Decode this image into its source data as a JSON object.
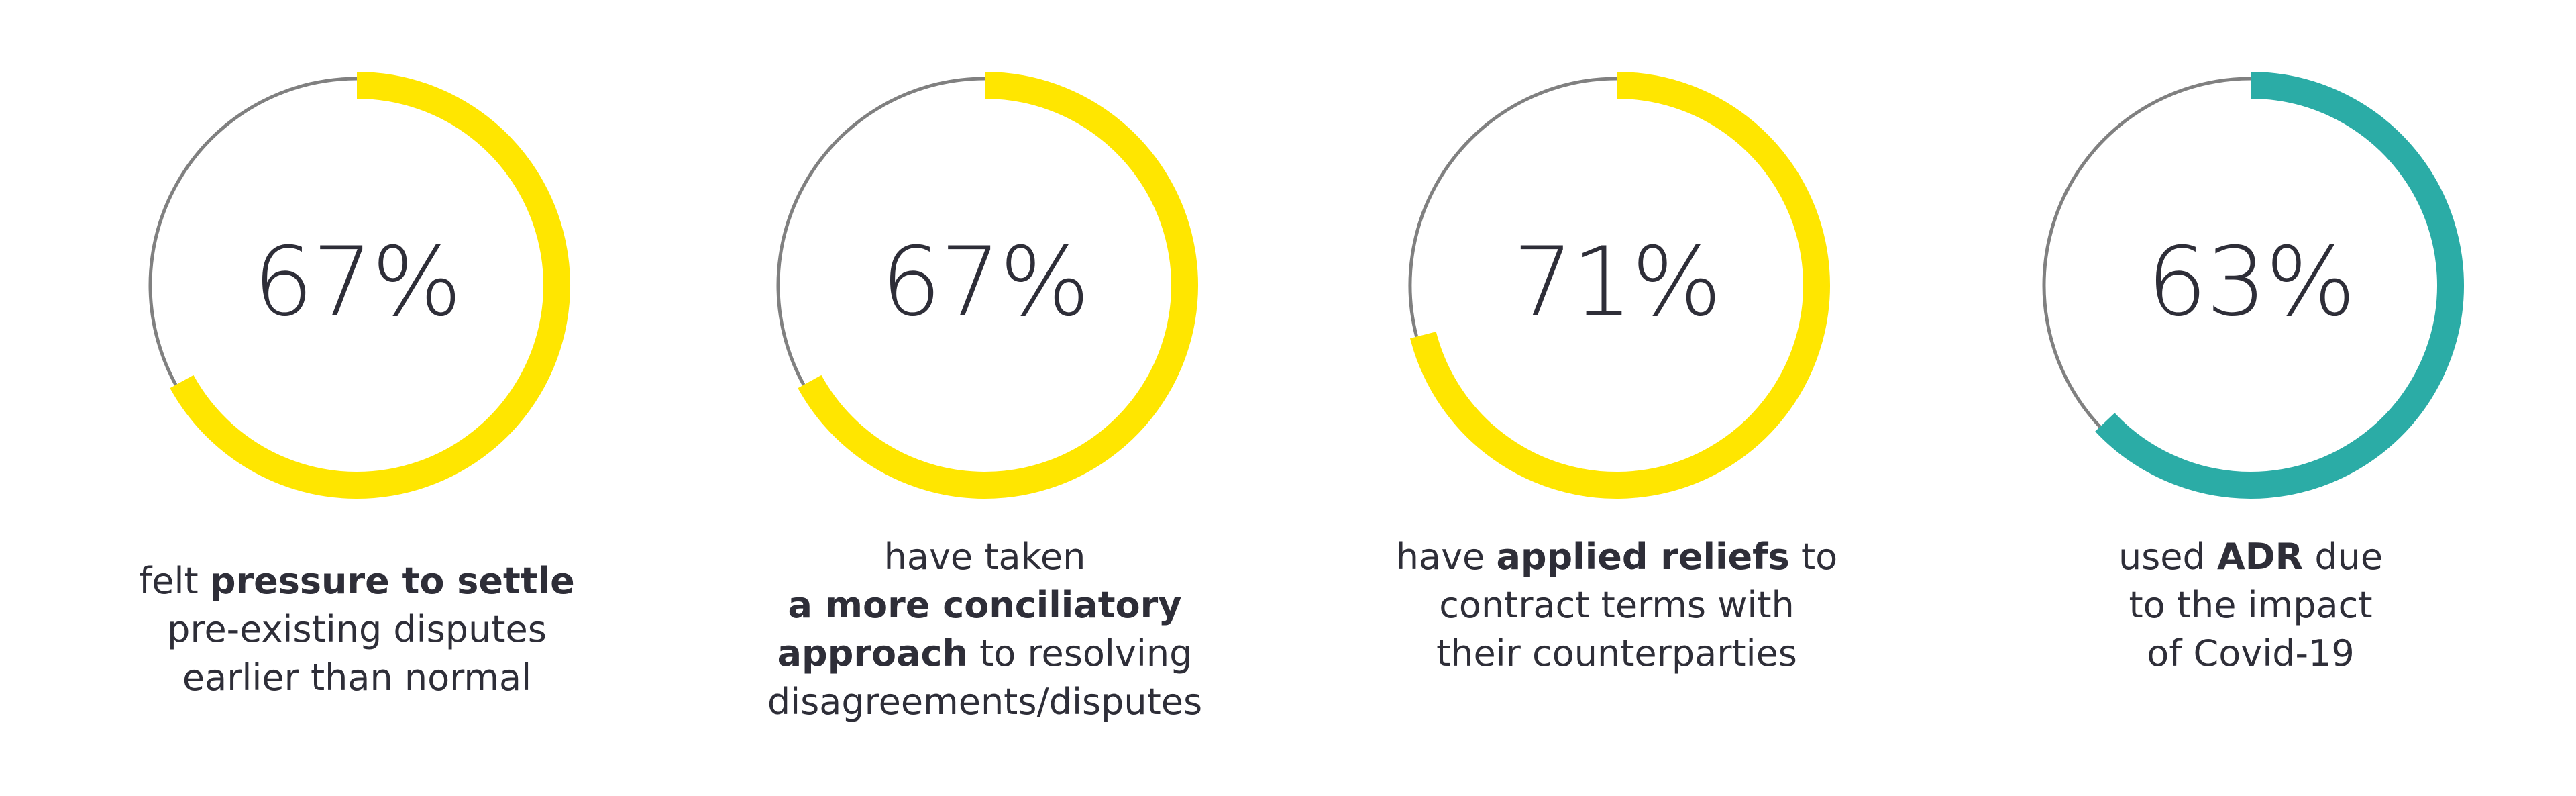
{
  "chart_data": {
    "type": "donut",
    "track_color": "#808080",
    "items": [
      {
        "value": 67,
        "label": "67%",
        "color": "#FFE600",
        "caption": [
          [
            {
              "text": "felt "
            },
            {
              "text": "pressure to settle",
              "bold": true
            }
          ],
          [
            {
              "text": "pre-existing disputes"
            }
          ],
          [
            {
              "text": "earlier than normal"
            }
          ]
        ]
      },
      {
        "value": 67,
        "label": "67%",
        "color": "#FFE600",
        "caption": [
          [
            {
              "text": "have taken"
            }
          ],
          [
            {
              "text": "a more conciliatory",
              "bold": true
            }
          ],
          [
            {
              "text": "approach",
              "bold": true
            },
            {
              "text": " to resolving"
            }
          ],
          [
            {
              "text": "disagreements/disputes"
            }
          ]
        ]
      },
      {
        "value": 71,
        "label": "71%",
        "color": "#FFE600",
        "caption": [
          [
            {
              "text": "have "
            },
            {
              "text": "applied reliefs",
              "bold": true
            },
            {
              "text": " to"
            }
          ],
          [
            {
              "text": "contract terms with"
            }
          ],
          [
            {
              "text": "their counterparties"
            }
          ]
        ]
      },
      {
        "value": 63,
        "label": "63%",
        "color": "#2BACA6",
        "caption": [
          [
            {
              "text": "used "
            },
            {
              "text": "ADR",
              "bold": true
            },
            {
              "text": " due"
            }
          ],
          [
            {
              "text": "to the impact"
            }
          ],
          [
            {
              "text": "of Covid-19"
            }
          ]
        ]
      }
    ]
  }
}
